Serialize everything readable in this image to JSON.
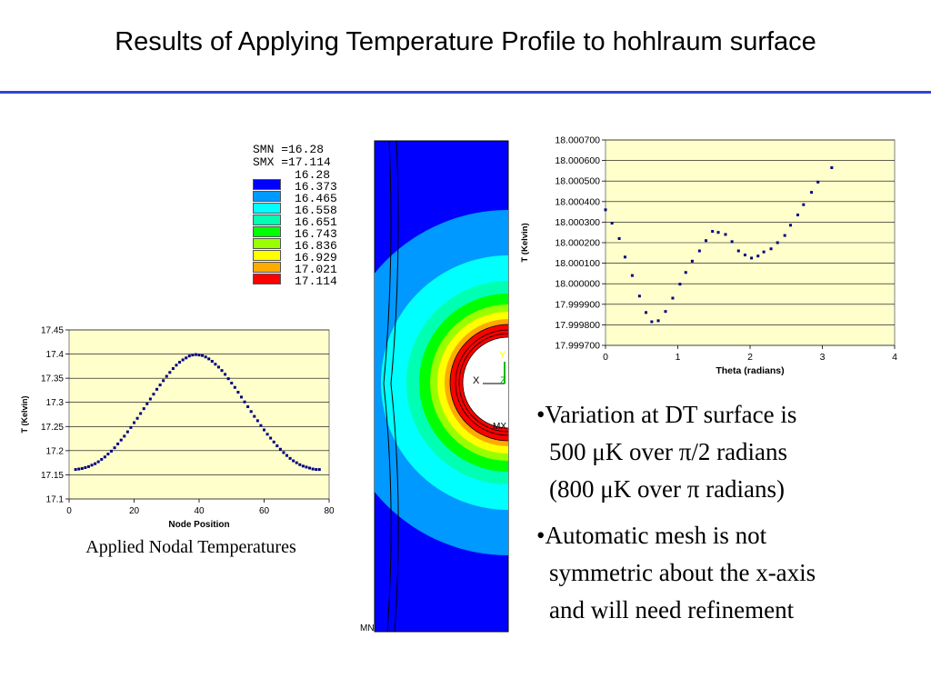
{
  "title": "Results of Applying Temperature Profile to hohlraum surface",
  "legend": {
    "smn": "SMN =16.28",
    "smx": "SMX =17.114",
    "levels": [
      {
        "value": "16.28",
        "color": "#0000ff"
      },
      {
        "value": "16.373",
        "color": "#0099ff"
      },
      {
        "value": "16.465",
        "color": "#00ffff"
      },
      {
        "value": "16.558",
        "color": "#00ffb2"
      },
      {
        "value": "16.651",
        "color": "#00ff00"
      },
      {
        "value": "16.743",
        "color": "#99ff00"
      },
      {
        "value": "16.836",
        "color": "#ffff00"
      },
      {
        "value": "16.929",
        "color": "#ffaa00"
      },
      {
        "value": "17.021",
        "color": "#ff0000"
      },
      {
        "value": "17.114",
        "color": ""
      }
    ]
  },
  "mesh": {
    "axis_y": "Y",
    "axis_x": "X",
    "axis_z": "Z",
    "tag_mn": "MN",
    "tag_mx": "MX"
  },
  "caption": "Applied Nodal Temperatures",
  "bullets": [
    [
      "•Variation at DT surface is",
      "500 μK over π/2 radians",
      "(800 μK over π radians)"
    ],
    [
      "•Automatic mesh is not",
      "symmetric about the x-axis",
      "and will need refinement"
    ]
  ],
  "chart_data": [
    {
      "type": "scatter",
      "title": "",
      "xlabel": "Node Position",
      "ylabel": "T (Kelvin)",
      "xlim": [
        0,
        80
      ],
      "ylim": [
        17.1,
        17.45
      ],
      "xticks": [
        0,
        20,
        40,
        60,
        80
      ],
      "yticks": [
        17.1,
        17.15,
        17.2,
        17.25,
        17.3,
        17.35,
        17.4,
        17.45
      ],
      "ytick_labels": [
        "17.1",
        "17.15",
        "17.2",
        "17.25",
        "17.3",
        "17.35",
        "17.4",
        "17.45"
      ],
      "xtick_labels": [
        "0",
        "20",
        "40",
        "60",
        "80"
      ],
      "grid": true,
      "marker_color": "#000080",
      "plot_bg": "#ffffcc",
      "x": [
        2,
        3,
        4,
        5,
        6,
        7,
        8,
        9,
        10,
        11,
        12,
        13,
        14,
        15,
        16,
        17,
        18,
        19,
        20,
        21,
        22,
        23,
        24,
        25,
        26,
        27,
        28,
        29,
        30,
        31,
        32,
        33,
        34,
        35,
        36,
        37,
        38,
        39,
        40,
        41,
        42,
        43,
        44,
        45,
        46,
        47,
        48,
        49,
        50,
        51,
        52,
        53,
        54,
        55,
        56,
        57,
        58,
        59,
        60,
        61,
        62,
        63,
        64,
        65,
        66,
        67,
        68,
        69,
        70,
        71,
        72,
        73,
        74,
        75,
        76,
        77
      ],
      "y": [
        17.161,
        17.162,
        17.163,
        17.165,
        17.167,
        17.17,
        17.173,
        17.177,
        17.182,
        17.187,
        17.193,
        17.199,
        17.206,
        17.214,
        17.222,
        17.23,
        17.239,
        17.248,
        17.258,
        17.267,
        17.277,
        17.287,
        17.297,
        17.307,
        17.317,
        17.327,
        17.336,
        17.345,
        17.354,
        17.362,
        17.37,
        17.377,
        17.383,
        17.388,
        17.392,
        17.396,
        17.398,
        17.399,
        17.398,
        17.397,
        17.394,
        17.39,
        17.385,
        17.379,
        17.373,
        17.366,
        17.358,
        17.349,
        17.34,
        17.331,
        17.321,
        17.311,
        17.301,
        17.291,
        17.281,
        17.271,
        17.262,
        17.252,
        17.243,
        17.234,
        17.226,
        17.218,
        17.21,
        17.203,
        17.196,
        17.19,
        17.184,
        17.179,
        17.175,
        17.171,
        17.168,
        17.166,
        17.164,
        17.162,
        17.161,
        17.161
      ]
    },
    {
      "type": "scatter",
      "title": "",
      "xlabel": "Theta (radians)",
      "ylabel": "T (Kelvin)",
      "xlim": [
        0,
        4
      ],
      "ylim": [
        17.9997,
        18.0007
      ],
      "xticks": [
        0,
        1,
        2,
        3,
        4
      ],
      "xtick_labels": [
        "0",
        "1",
        "2",
        "3",
        "4"
      ],
      "yticks": [
        17.9997,
        17.9998,
        17.9999,
        18.0,
        18.0001,
        18.0002,
        18.0003,
        18.0004,
        18.0005,
        18.0006,
        18.0007
      ],
      "ytick_labels": [
        "17.999700",
        "17.999800",
        "17.999900",
        "18.000000",
        "18.000100",
        "18.000200",
        "18.000300",
        "18.000400",
        "18.000500",
        "18.000600",
        "18.000700"
      ],
      "grid": true,
      "marker_color": "#000080",
      "plot_bg": "#ffffcc",
      "x": [
        0.0,
        0.09,
        0.19,
        0.27,
        0.37,
        0.47,
        0.56,
        0.64,
        0.73,
        0.83,
        0.93,
        1.03,
        1.11,
        1.2,
        1.3,
        1.39,
        1.48,
        1.56,
        1.66,
        1.75,
        1.84,
        1.93,
        2.02,
        2.11,
        2.19,
        2.29,
        2.38,
        2.48,
        2.56,
        2.66,
        2.74,
        2.85,
        2.94,
        3.13
      ],
      "y": [
        18.00036,
        18.000295,
        18.00022,
        18.00013,
        18.00004,
        17.99994,
        17.99986,
        17.999815,
        17.99982,
        17.999865,
        17.99993,
        17.999998,
        18.000055,
        18.00011,
        18.00016,
        18.00021,
        18.000255,
        18.00025,
        18.00024,
        18.000205,
        18.00016,
        18.00014,
        18.000125,
        18.000135,
        18.000155,
        18.00017,
        18.0002,
        18.000235,
        18.000285,
        18.000335,
        18.000385,
        18.000445,
        18.000495,
        18.000565
      ]
    }
  ]
}
